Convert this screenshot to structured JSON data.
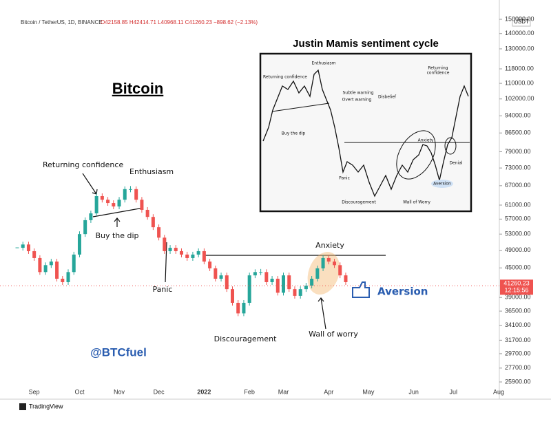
{
  "header": {
    "symbol": "Bitcoin / TetherUS, 1D, BINANCE",
    "ohlc": "O42158.85 H42414.71 L40968.11 C41260.23 −898.62 (−2.13%)"
  },
  "chart_data": {
    "type": "candlestick",
    "title": "Bitcoin",
    "categories": [
      null,
      null,
      null,
      "Sep",
      null,
      null,
      null,
      null,
      null,
      null,
      null,
      "Oct",
      null,
      null,
      null,
      null,
      null,
      null,
      "Nov",
      null,
      null,
      null,
      null,
      null,
      null,
      "Dec",
      null,
      null,
      null,
      null,
      null,
      null,
      null,
      "2022",
      null,
      null,
      null,
      null,
      null,
      null,
      null,
      "Feb",
      null,
      null,
      null,
      null,
      null,
      "Mar",
      null,
      null,
      null,
      null,
      null,
      null,
      null,
      "Apr",
      null,
      null,
      null,
      null,
      null,
      null,
      "May",
      null,
      null,
      null,
      null,
      null,
      null,
      null,
      "Jun",
      null,
      null,
      null,
      null,
      null,
      null,
      "Jul",
      null,
      null,
      null,
      null,
      null,
      null,
      null,
      "Aug"
    ],
    "values": [
      49600,
      50400,
      48800,
      47200,
      44100,
      45600,
      46400,
      42700,
      42000,
      44100,
      48000,
      53000,
      56700,
      58600,
      63700,
      62600,
      61600,
      60600,
      62600,
      65900,
      65900,
      62600,
      59600,
      57600,
      54800,
      52100,
      48800,
      49600,
      48800,
      48000,
      47200,
      48000,
      48800,
      46400,
      44900,
      42700,
      43400,
      40600,
      38000,
      36100,
      38000,
      43400,
      44100,
      44100,
      42000,
      42700,
      39900,
      43400,
      40600,
      39300,
      40600,
      41300,
      42700,
      44900,
      47200,
      46400,
      45600,
      43400,
      42000,
      null,
      null,
      null,
      null,
      null,
      null,
      null,
      null,
      null,
      null,
      null,
      null,
      null,
      null,
      null,
      null,
      null,
      null,
      null,
      null,
      null,
      null,
      null,
      null,
      null,
      null,
      null
    ],
    "color_up": "#26a69a",
    "color_down": "#ef5350",
    "log_scale": true,
    "grid": false,
    "y_unit": "USDT",
    "ylim": [
      24230,
      164700
    ],
    "yticks": [
      {
        "value": 150000,
        "label": "150000.00"
      },
      {
        "value": 140000,
        "label": "140000.00"
      },
      {
        "value": 130000,
        "label": "130000.00"
      },
      {
        "value": 118000,
        "label": "118000.00"
      },
      {
        "value": 110000,
        "label": "110000.00"
      },
      {
        "value": 102000,
        "label": "102000.00"
      },
      {
        "value": 94000,
        "label": "94000.00"
      },
      {
        "value": 86500,
        "label": "86500.00"
      },
      {
        "value": 79000,
        "label": "79000.00"
      },
      {
        "value": 73000,
        "label": "73000.00"
      },
      {
        "value": 67000,
        "label": "67000.00"
      },
      {
        "value": 61000,
        "label": "61000.00"
      },
      {
        "value": 57000,
        "label": "57000.00"
      },
      {
        "value": 53000,
        "label": "53000.00"
      },
      {
        "value": 49000,
        "label": "49000.00"
      },
      {
        "value": 45000,
        "label": "45000.00"
      },
      {
        "value": 39000,
        "label": "39000.00"
      },
      {
        "value": 36500,
        "label": "36500.00"
      },
      {
        "value": 34100,
        "label": "34100.00"
      },
      {
        "value": 31700,
        "label": "31700.00"
      },
      {
        "value": 29700,
        "label": "29700.00"
      },
      {
        "value": 27700,
        "label": "27700.00"
      },
      {
        "value": 25900,
        "label": "25900.00"
      }
    ],
    "last_price": 41260.23,
    "countdown": "12:15:56",
    "annotations": [
      "Returning confidence",
      "Enthusiasm",
      "Buy the dip",
      "Panic",
      "Anxiety",
      "Aversion",
      "Discouragement",
      "Wall of worry"
    ],
    "watermark": "@BTCfuel"
  },
  "inset": {
    "title": "Justin Mamis sentiment cycle",
    "labels": [
      "Enthusiasm",
      "Returning confidence",
      "Subtle warning",
      "Overt warning",
      "Disbelief",
      "Buy the dip",
      "Panic",
      "Discouragement",
      "Wall of Worry",
      "Anxiety",
      "Aversion",
      "Denial",
      "Returning",
      "confidence"
    ]
  },
  "footer": "TradingView"
}
